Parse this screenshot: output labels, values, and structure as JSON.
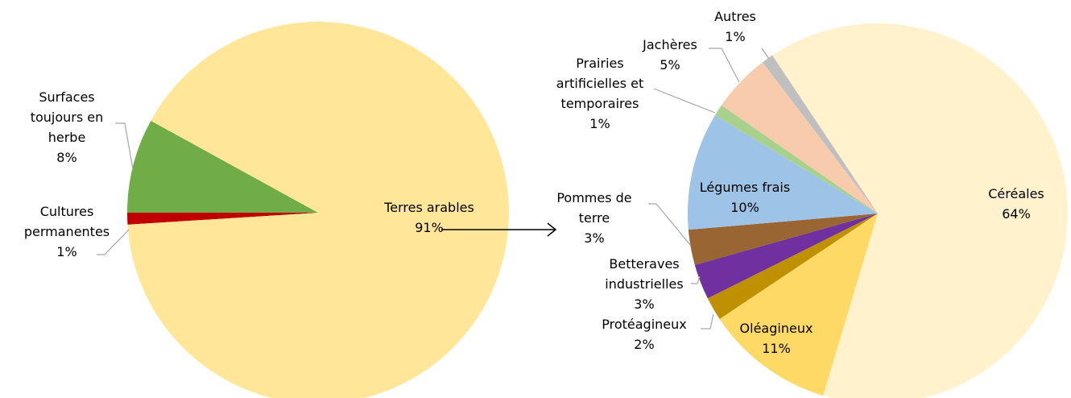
{
  "chart_data": [
    {
      "type": "pie",
      "categories": [
        "Cultures permanentes",
        "Surfaces toujours en herbe",
        "Terres arables"
      ],
      "values": [
        1,
        8,
        91
      ],
      "value_labels": [
        "1%",
        "8%",
        "91%"
      ],
      "colors": [
        "#c00000",
        "#70ad47",
        "#ffe699"
      ]
    },
    {
      "type": "pie",
      "categories": [
        "Céréales",
        "Oléagineux",
        "Protéagineux",
        "Betteraves industrielles",
        "Pommes de terre",
        "Légumes frais",
        "Prairies artificielles et temporaires",
        "Jachères",
        "Autres"
      ],
      "values": [
        64,
        11,
        2,
        3,
        3,
        10,
        1,
        5,
        1
      ],
      "value_labels": [
        "64%",
        "11%",
        "2%",
        "3%",
        "3%",
        "10%",
        "1%",
        "5%",
        "1%"
      ],
      "colors": [
        "#fff2cc",
        "#ffd966",
        "#bf9000",
        "#7030a0",
        "#996633",
        "#9dc3e6",
        "#a9d18e",
        "#f8cbad",
        "#bfbfbf"
      ]
    }
  ]
}
